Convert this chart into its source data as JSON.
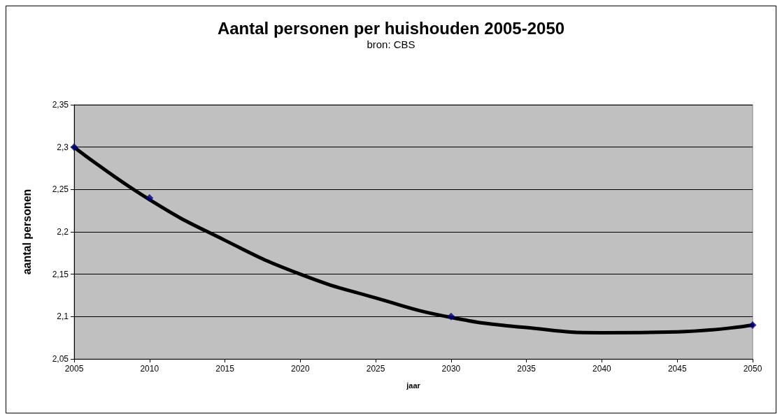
{
  "chart_data": {
    "type": "scatter",
    "title": "Aantal personen per huishouden 2005-2050",
    "subtitle": "bron: CBS",
    "xlabel": "jaar",
    "ylabel": "aantal personen",
    "xlim": [
      2005,
      2050
    ],
    "xticks": [
      2005,
      2010,
      2015,
      2020,
      2025,
      2030,
      2035,
      2040,
      2045,
      2050
    ],
    "ylim": [
      2.05,
      2.35
    ],
    "yticks": [
      {
        "value": 2.05,
        "label": "2,05"
      },
      {
        "value": 2.1,
        "label": "2,1"
      },
      {
        "value": 2.15,
        "label": "2,15"
      },
      {
        "value": 2.2,
        "label": "2,2"
      },
      {
        "value": 2.25,
        "label": "2,25"
      },
      {
        "value": 2.3,
        "label": "2,3"
      },
      {
        "value": 2.35,
        "label": "2,35"
      }
    ],
    "grid": "y",
    "series": [
      {
        "type": "line",
        "color": "#000000",
        "marker": "none",
        "x": [
          2005,
          2010,
          2015,
          2020,
          2025,
          2030,
          2035,
          2040,
          2045,
          2050
        ],
        "values": [
          2.3,
          2.238,
          2.19,
          2.15,
          2.122,
          2.099,
          2.087,
          2.081,
          2.082,
          2.09
        ]
      },
      {
        "color": "#000080",
        "marker": "diamond",
        "x": [
          2005,
          2010,
          2030,
          2050
        ],
        "values": [
          2.3,
          2.24,
          2.1,
          2.09
        ]
      }
    ]
  }
}
